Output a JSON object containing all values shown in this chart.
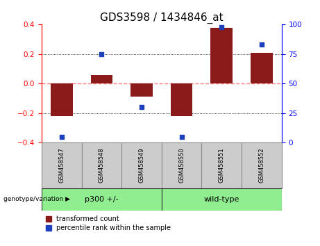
{
  "title": "GDS3598 / 1434846_at",
  "samples": [
    "GSM458547",
    "GSM458548",
    "GSM458549",
    "GSM458550",
    "GSM458551",
    "GSM458552"
  ],
  "red_values": [
    -0.22,
    0.06,
    -0.09,
    -0.22,
    0.38,
    0.21
  ],
  "blue_percentiles": [
    5,
    75,
    30,
    5,
    98,
    83
  ],
  "ylim_left": [
    -0.4,
    0.4
  ],
  "ylim_right": [
    0,
    100
  ],
  "yticks_left": [
    -0.4,
    -0.2,
    0.0,
    0.2,
    0.4
  ],
  "yticks_right": [
    0,
    25,
    50,
    75,
    100
  ],
  "group_label": "genotype/variation",
  "group1_label": "p300 +/-",
  "group2_label": "wild-type",
  "group_color": "#90EE90",
  "sample_box_color": "#CCCCCC",
  "red_color": "#8B1A1A",
  "blue_color": "#1C3FBB",
  "bar_width": 0.55,
  "zero_line_color": "#FF8080",
  "bg_color": "#FFFFFF",
  "legend_red": "transformed count",
  "legend_blue": "percentile rank within the sample",
  "title_fontsize": 11,
  "tick_fontsize": 7.5,
  "sample_fontsize": 6,
  "group_fontsize": 8,
  "legend_fontsize": 7
}
